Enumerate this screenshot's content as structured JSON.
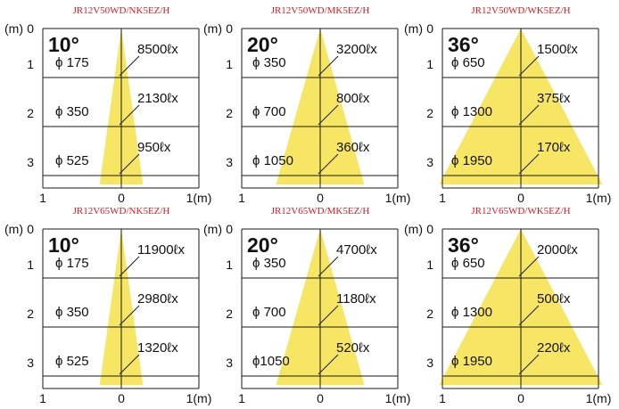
{
  "colors": {
    "beam": "#f6e663",
    "grid": "#1a1a1a",
    "model_text": "#e8151b",
    "text": "#111111"
  },
  "axis": {
    "unit_y": "(m)",
    "unit_x": "1(m)",
    "y_ticks": [
      "0",
      "1",
      "2",
      "3"
    ],
    "x_ticks": [
      "1",
      "0"
    ]
  },
  "diagrams": [
    {
      "model": "JR12V50WD/NK5EZ/H",
      "angle": "10°",
      "half_width_m": 0.26,
      "rows": [
        {
          "dia": "ϕ 175",
          "lux": "8500ℓx"
        },
        {
          "dia": "ϕ 350",
          "lux": "2130ℓx"
        },
        {
          "dia": "ϕ 525",
          "lux": "950ℓx"
        }
      ]
    },
    {
      "model": "JR12V50WD/MK5EZ/H",
      "angle": "20°",
      "half_width_m": 0.53,
      "rows": [
        {
          "dia": "ϕ 350",
          "lux": "3200ℓx"
        },
        {
          "dia": "ϕ 700",
          "lux": "800ℓx"
        },
        {
          "dia": "ϕ 1050",
          "lux": "360ℓx"
        }
      ]
    },
    {
      "model": "JR12V50WD/WK5EZ/H",
      "angle": "36°",
      "half_width_m": 0.98,
      "rows": [
        {
          "dia": "ϕ 650",
          "lux": "1500ℓx"
        },
        {
          "dia": "ϕ 1300",
          "lux": "375ℓx"
        },
        {
          "dia": "ϕ 1950",
          "lux": "170ℓx"
        }
      ]
    },
    {
      "model": "JR12V65WD/NK5EZ/H",
      "angle": "10°",
      "half_width_m": 0.26,
      "rows": [
        {
          "dia": "ϕ 175",
          "lux": "11900ℓx"
        },
        {
          "dia": "ϕ 350",
          "lux": "2980ℓx"
        },
        {
          "dia": "ϕ 525",
          "lux": "1320ℓx"
        }
      ]
    },
    {
      "model": "JR12V65WD/MK5EZ/H",
      "angle": "20°",
      "half_width_m": 0.53,
      "rows": [
        {
          "dia": "ϕ 350",
          "lux": "4700ℓx"
        },
        {
          "dia": "ϕ 700",
          "lux": "1180ℓx"
        },
        {
          "dia": "ϕ1050",
          "lux": "520ℓx"
        }
      ]
    },
    {
      "model": "JR12V65WD/WK5EZ/H",
      "angle": "36°",
      "half_width_m": 0.98,
      "rows": [
        {
          "dia": "ϕ 650",
          "lux": "2000ℓx"
        },
        {
          "dia": "ϕ 1300",
          "lux": "500ℓx"
        },
        {
          "dia": "ϕ 1950",
          "lux": "220ℓx"
        }
      ]
    }
  ]
}
